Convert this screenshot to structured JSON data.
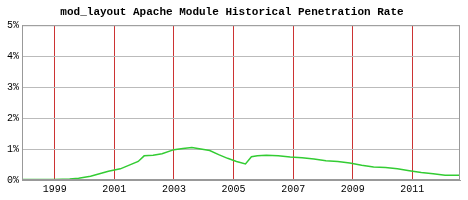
{
  "chart_data": {
    "type": "line",
    "title": "mod_layout Apache Module Historical Penetration Rate",
    "x": [
      1997.9,
      1998.5,
      1999.0,
      1999.5,
      1999.8,
      2000.2,
      2000.5,
      2000.8,
      2001.2,
      2001.5,
      2001.8,
      2002.0,
      2002.3,
      2002.6,
      2003.0,
      2003.3,
      2003.6,
      2003.9,
      2004.2,
      2004.5,
      2004.8,
      2005.1,
      2005.4,
      2005.6,
      2005.8,
      2006.1,
      2006.5,
      2006.9,
      2007.3,
      2007.7,
      2008.1,
      2008.5,
      2008.9,
      2009.3,
      2009.7,
      2010.1,
      2010.5,
      2010.9,
      2011.3,
      2011.7,
      2012.1,
      2012.6
    ],
    "values": [
      0.02,
      0.02,
      0.02,
      0.03,
      0.06,
      0.12,
      0.2,
      0.28,
      0.36,
      0.48,
      0.6,
      0.78,
      0.8,
      0.85,
      0.98,
      1.02,
      1.05,
      1.0,
      0.95,
      0.82,
      0.7,
      0.6,
      0.52,
      0.75,
      0.78,
      0.8,
      0.78,
      0.74,
      0.72,
      0.68,
      0.62,
      0.6,
      0.55,
      0.48,
      0.42,
      0.4,
      0.36,
      0.3,
      0.24,
      0.2,
      0.15,
      0.15
    ],
    "color": "#33cc33",
    "xlim": [
      1997.9,
      2012.6
    ],
    "xticks": [
      1999,
      2001,
      2003,
      2005,
      2007,
      2009,
      2011
    ],
    "ylim": [
      0,
      5
    ],
    "yticks": [
      {
        "value": 0,
        "label": "0%"
      },
      {
        "value": 1,
        "label": "1%"
      },
      {
        "value": 2,
        "label": "2%"
      },
      {
        "value": 3,
        "label": "3%"
      },
      {
        "value": 4,
        "label": "4%"
      },
      {
        "value": 5,
        "label": "5%"
      }
    ],
    "grid": true
  }
}
